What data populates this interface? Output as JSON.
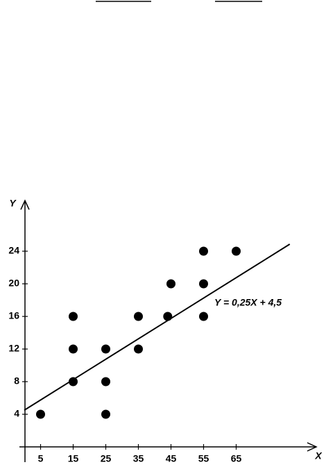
{
  "chart_data": {
    "type": "scatter",
    "x_label": "X",
    "y_label": "Y",
    "x": [
      5,
      15,
      15,
      15,
      25,
      25,
      25,
      35,
      35,
      44,
      45,
      55,
      55,
      55,
      65
    ],
    "values": [
      4,
      16,
      12,
      8,
      12,
      8,
      4,
      16,
      12,
      16,
      20,
      24,
      20,
      16,
      24
    ],
    "color": "#000000",
    "xlim": [
      0,
      89
    ],
    "ylim": [
      0,
      30
    ],
    "xticks": [
      5,
      15,
      25,
      35,
      45,
      55,
      65
    ],
    "yticks": [
      4,
      8,
      12,
      16,
      20,
      24
    ],
    "fit": {
      "slope": 0.25,
      "intercept": 4.5,
      "label": "Y = 0,25X + 4,5"
    }
  }
}
